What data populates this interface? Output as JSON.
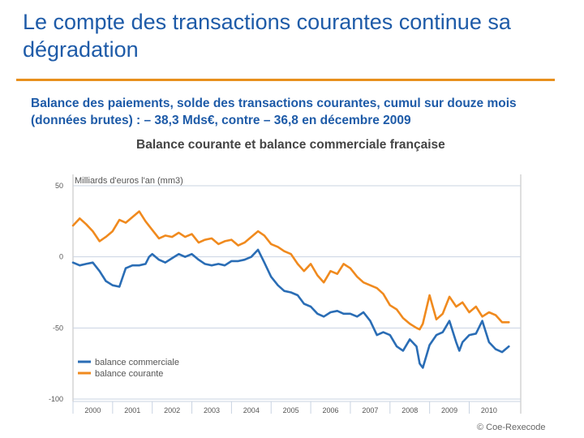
{
  "slide": {
    "title": "Le compte des transactions courantes continue sa dégradation",
    "subtitle": "Balance des paiements, solde des transactions courantes, cumul sur douze mois (données brutes) : – 38,3 Mds€, contre – 36,8 en décembre 2009",
    "credit": "© Coe-Rexecode",
    "accent_color": "#e8901d",
    "title_color": "#1e5ba8"
  },
  "chart_data": {
    "type": "line",
    "title": "Balance courante et balance commerciale française",
    "ylabel": "Milliards d'euros l'an (mm3)",
    "xlabel": "",
    "ylim": [
      -100,
      50
    ],
    "yticks": [
      50,
      0,
      -50,
      -100
    ],
    "xlim": [
      1999.5,
      2010.8
    ],
    "categories": [
      "2000",
      "2001",
      "2002",
      "2003",
      "2004",
      "2005",
      "2006",
      "2007",
      "2008",
      "2009",
      "2010"
    ],
    "grid": true,
    "legend_position": "bottom-left",
    "series": [
      {
        "name": "balance commerciale",
        "color": "#2a6db5",
        "x": [
          1999.5,
          1999.67,
          1999.83,
          2000.0,
          2000.17,
          2000.33,
          2000.5,
          2000.67,
          2000.83,
          2001.0,
          2001.17,
          2001.33,
          2001.42,
          2001.5,
          2001.67,
          2001.83,
          2002.0,
          2002.17,
          2002.33,
          2002.5,
          2002.67,
          2002.83,
          2003.0,
          2003.17,
          2003.33,
          2003.5,
          2003.67,
          2003.83,
          2004.0,
          2004.17,
          2004.33,
          2004.5,
          2004.67,
          2004.83,
          2005.0,
          2005.17,
          2005.33,
          2005.5,
          2005.67,
          2005.83,
          2006.0,
          2006.17,
          2006.33,
          2006.5,
          2006.67,
          2006.83,
          2007.0,
          2007.17,
          2007.33,
          2007.5,
          2007.67,
          2007.83,
          2008.0,
          2008.17,
          2008.25,
          2008.33,
          2008.5,
          2008.67,
          2008.83,
          2009.0,
          2009.17,
          2009.25,
          2009.33,
          2009.5,
          2009.67,
          2009.83,
          2010.0,
          2010.17,
          2010.33,
          2010.5
        ],
        "values": [
          -4,
          -6,
          -5,
          -4,
          -10,
          -17,
          -20,
          -21,
          -8,
          -6,
          -6,
          -5,
          0,
          2,
          -2,
          -4,
          -1,
          2,
          0,
          2,
          -2,
          -5,
          -6,
          -5,
          -6,
          -3,
          -3,
          -2,
          0,
          5,
          -4,
          -14,
          -20,
          -24,
          -25,
          -27,
          -33,
          -35,
          -40,
          -42,
          -39,
          -38,
          -40,
          -40,
          -42,
          -39,
          -45,
          -55,
          -53,
          -55,
          -63,
          -66,
          -58,
          -63,
          -75,
          -78,
          -62,
          -55,
          -53,
          -45,
          -60,
          -66,
          -60,
          -55,
          -54,
          -45,
          -60,
          -65,
          -67,
          -63
        ]
      },
      {
        "name": "balance courante",
        "color": "#f08a1e",
        "x": [
          1999.5,
          1999.67,
          1999.83,
          2000.0,
          2000.17,
          2000.33,
          2000.5,
          2000.67,
          2000.83,
          2001.0,
          2001.17,
          2001.33,
          2001.5,
          2001.67,
          2001.83,
          2002.0,
          2002.17,
          2002.33,
          2002.5,
          2002.67,
          2002.83,
          2003.0,
          2003.17,
          2003.33,
          2003.5,
          2003.67,
          2003.83,
          2004.0,
          2004.17,
          2004.33,
          2004.5,
          2004.67,
          2004.83,
          2005.0,
          2005.17,
          2005.33,
          2005.5,
          2005.67,
          2005.83,
          2006.0,
          2006.17,
          2006.33,
          2006.5,
          2006.67,
          2006.83,
          2007.0,
          2007.17,
          2007.33,
          2007.5,
          2007.67,
          2007.83,
          2008.0,
          2008.17,
          2008.25,
          2008.33,
          2008.5,
          2008.67,
          2008.83,
          2009.0,
          2009.17,
          2009.33,
          2009.5,
          2009.67,
          2009.83,
          2010.0,
          2010.17,
          2010.33,
          2010.5
        ],
        "values": [
          22,
          27,
          23,
          18,
          11,
          14,
          18,
          26,
          24,
          28,
          32,
          25,
          19,
          13,
          15,
          14,
          17,
          14,
          16,
          10,
          12,
          13,
          9,
          11,
          12,
          8,
          10,
          14,
          18,
          15,
          9,
          7,
          4,
          2,
          -5,
          -10,
          -5,
          -13,
          -18,
          -10,
          -12,
          -5,
          -8,
          -14,
          -18,
          -20,
          -22,
          -26,
          -34,
          -37,
          -43,
          -47,
          -50,
          -51,
          -47,
          -27,
          -44,
          -40,
          -28,
          -35,
          -32,
          -39,
          -35,
          -42,
          -39,
          -41,
          -46,
          -46
        ]
      }
    ]
  }
}
